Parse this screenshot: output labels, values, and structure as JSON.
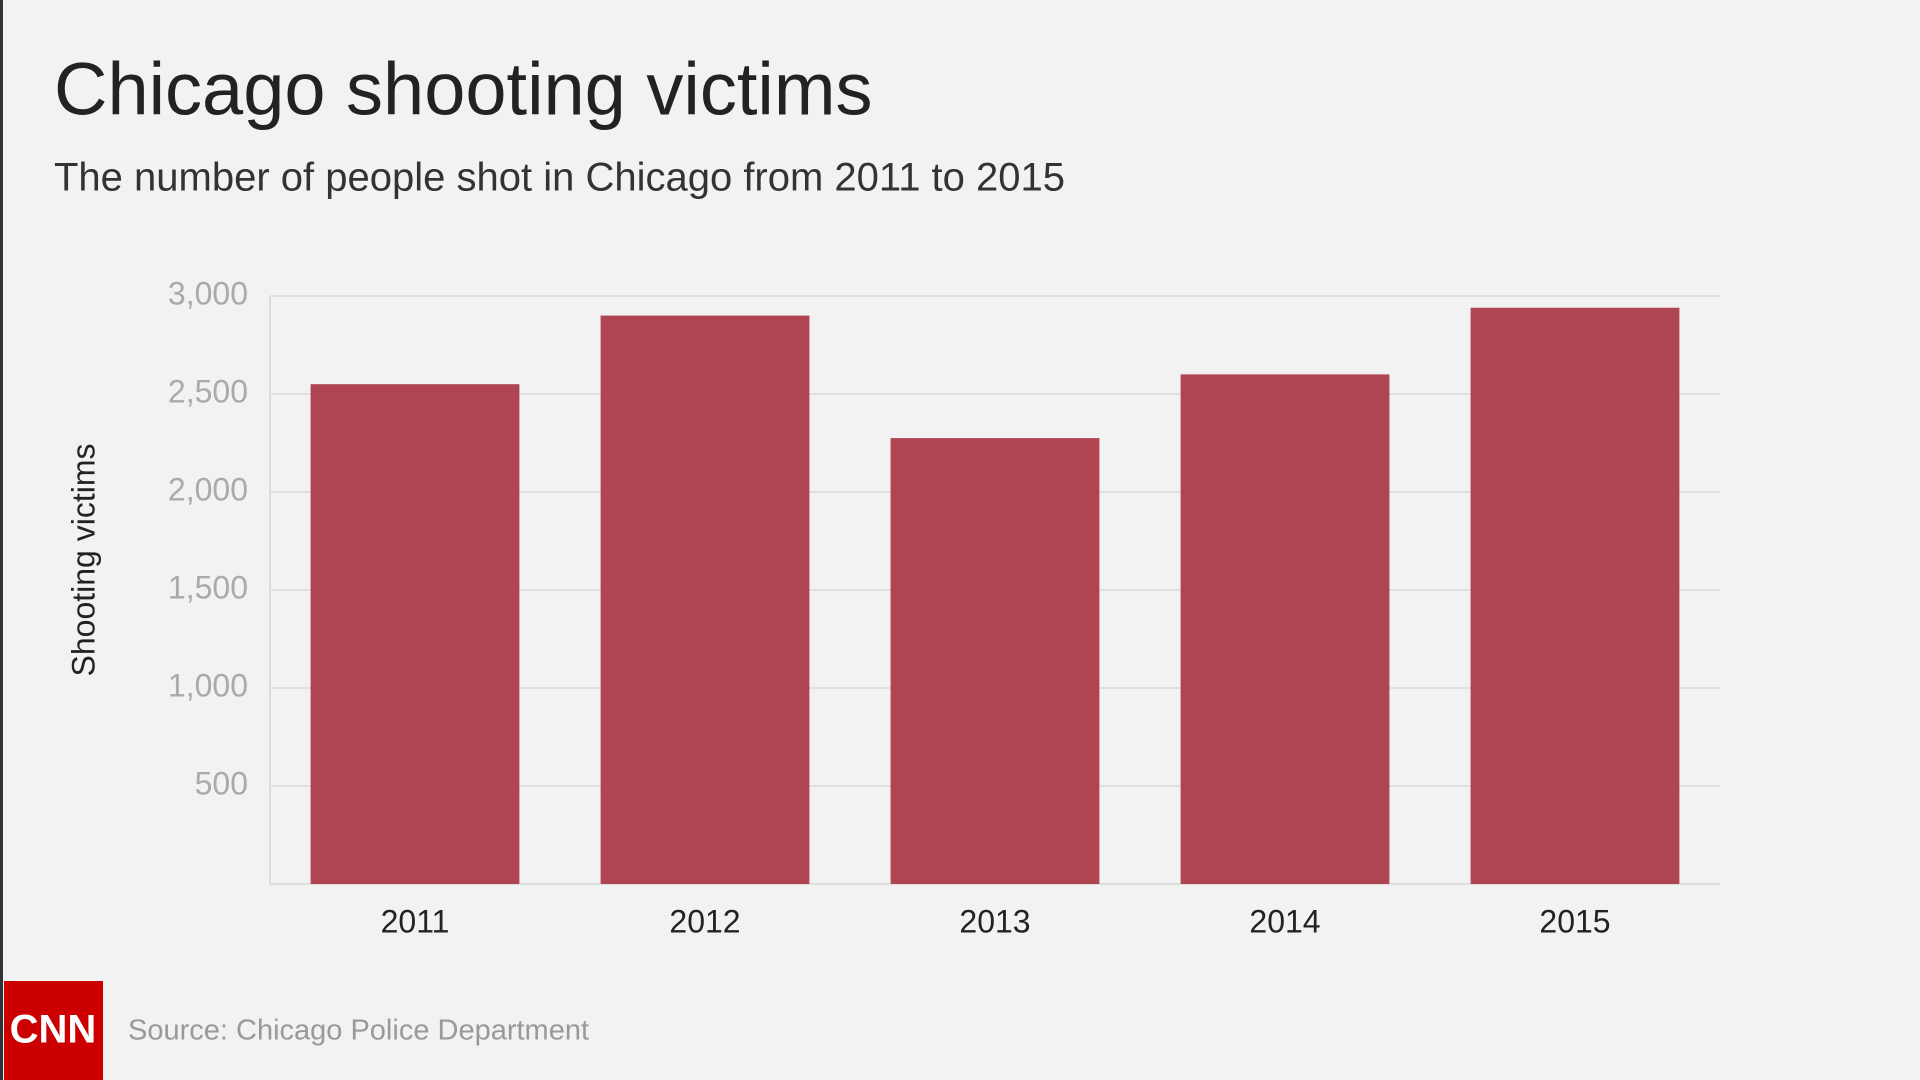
{
  "chart_data": {
    "type": "bar",
    "title": "Chicago shooting victims",
    "subtitle": "The number of people shot in Chicago from 2011 to 2015",
    "y_label": "Shooting victims",
    "categories": [
      "2011",
      "2012",
      "2013",
      "2014",
      "2015"
    ],
    "values": [
      2550,
      2900,
      2275,
      2600,
      2940
    ],
    "color": "#b04552",
    "ylim": [
      0,
      3000
    ],
    "yticks": [
      500,
      {
        "value": 1000,
        "label": "1,000"
      },
      {
        "value": 1500,
        "label": "1,500"
      },
      {
        "value": 2000,
        "label": "2,000"
      },
      {
        "value": 2500,
        "label": "2,500"
      },
      {
        "value": 3000,
        "label": "3,000"
      }
    ],
    "grid": true,
    "source": "Source: Chicago Police Department",
    "logo": "CNN"
  }
}
